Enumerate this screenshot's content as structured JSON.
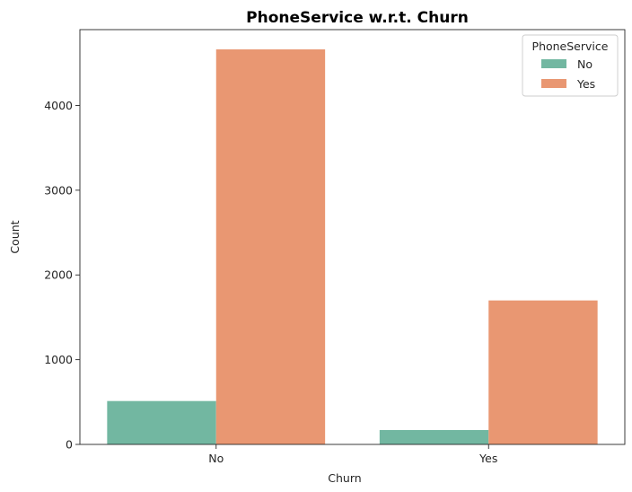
{
  "chart_data": {
    "type": "bar",
    "title": "PhoneService w.r.t. Churn",
    "xlabel": "Churn",
    "ylabel": "Count",
    "categories": [
      "No",
      "Yes"
    ],
    "series": [
      {
        "name": "No",
        "values": [
          512,
          170
        ],
        "color": "#72b7a1"
      },
      {
        "name": "Yes",
        "values": [
          4662,
          1699
        ],
        "color": "#e99772"
      }
    ],
    "ylim": [
      0,
      4895
    ],
    "yticks": [
      0,
      1000,
      2000,
      3000,
      4000
    ],
    "legend": {
      "title": "PhoneService",
      "position": "top-right"
    },
    "grid": false
  }
}
